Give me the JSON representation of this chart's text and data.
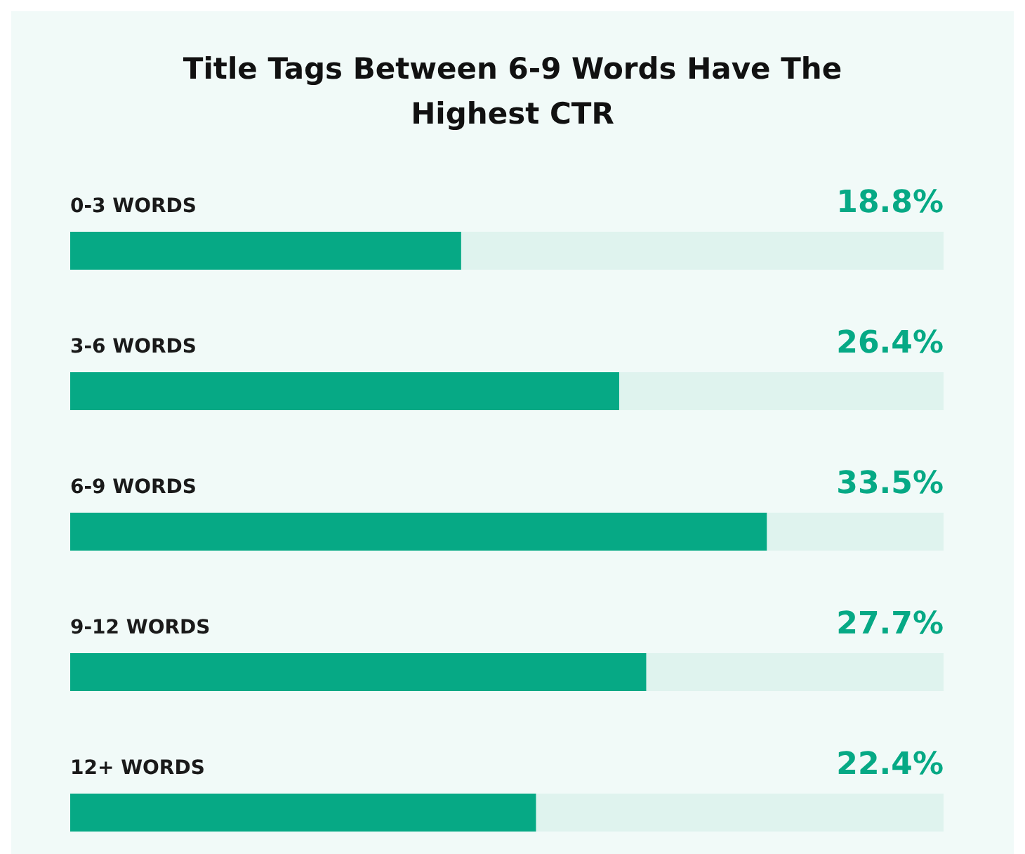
{
  "chart_data": {
    "type": "bar",
    "orientation": "horizontal",
    "title": "Title Tags Between 6-9 Words Have The Highest CTR",
    "categories": [
      "0-3 WORDS",
      "3-6 WORDS",
      "6-9 WORDS",
      "9-12 WORDS",
      "12+ WORDS"
    ],
    "values": [
      18.8,
      26.4,
      33.5,
      27.7,
      22.4
    ],
    "value_labels": [
      "18.8%",
      "26.4%",
      "33.5%",
      "27.7%",
      "22.4%"
    ],
    "color": "#06a985",
    "xlim": [
      0,
      42
    ]
  }
}
